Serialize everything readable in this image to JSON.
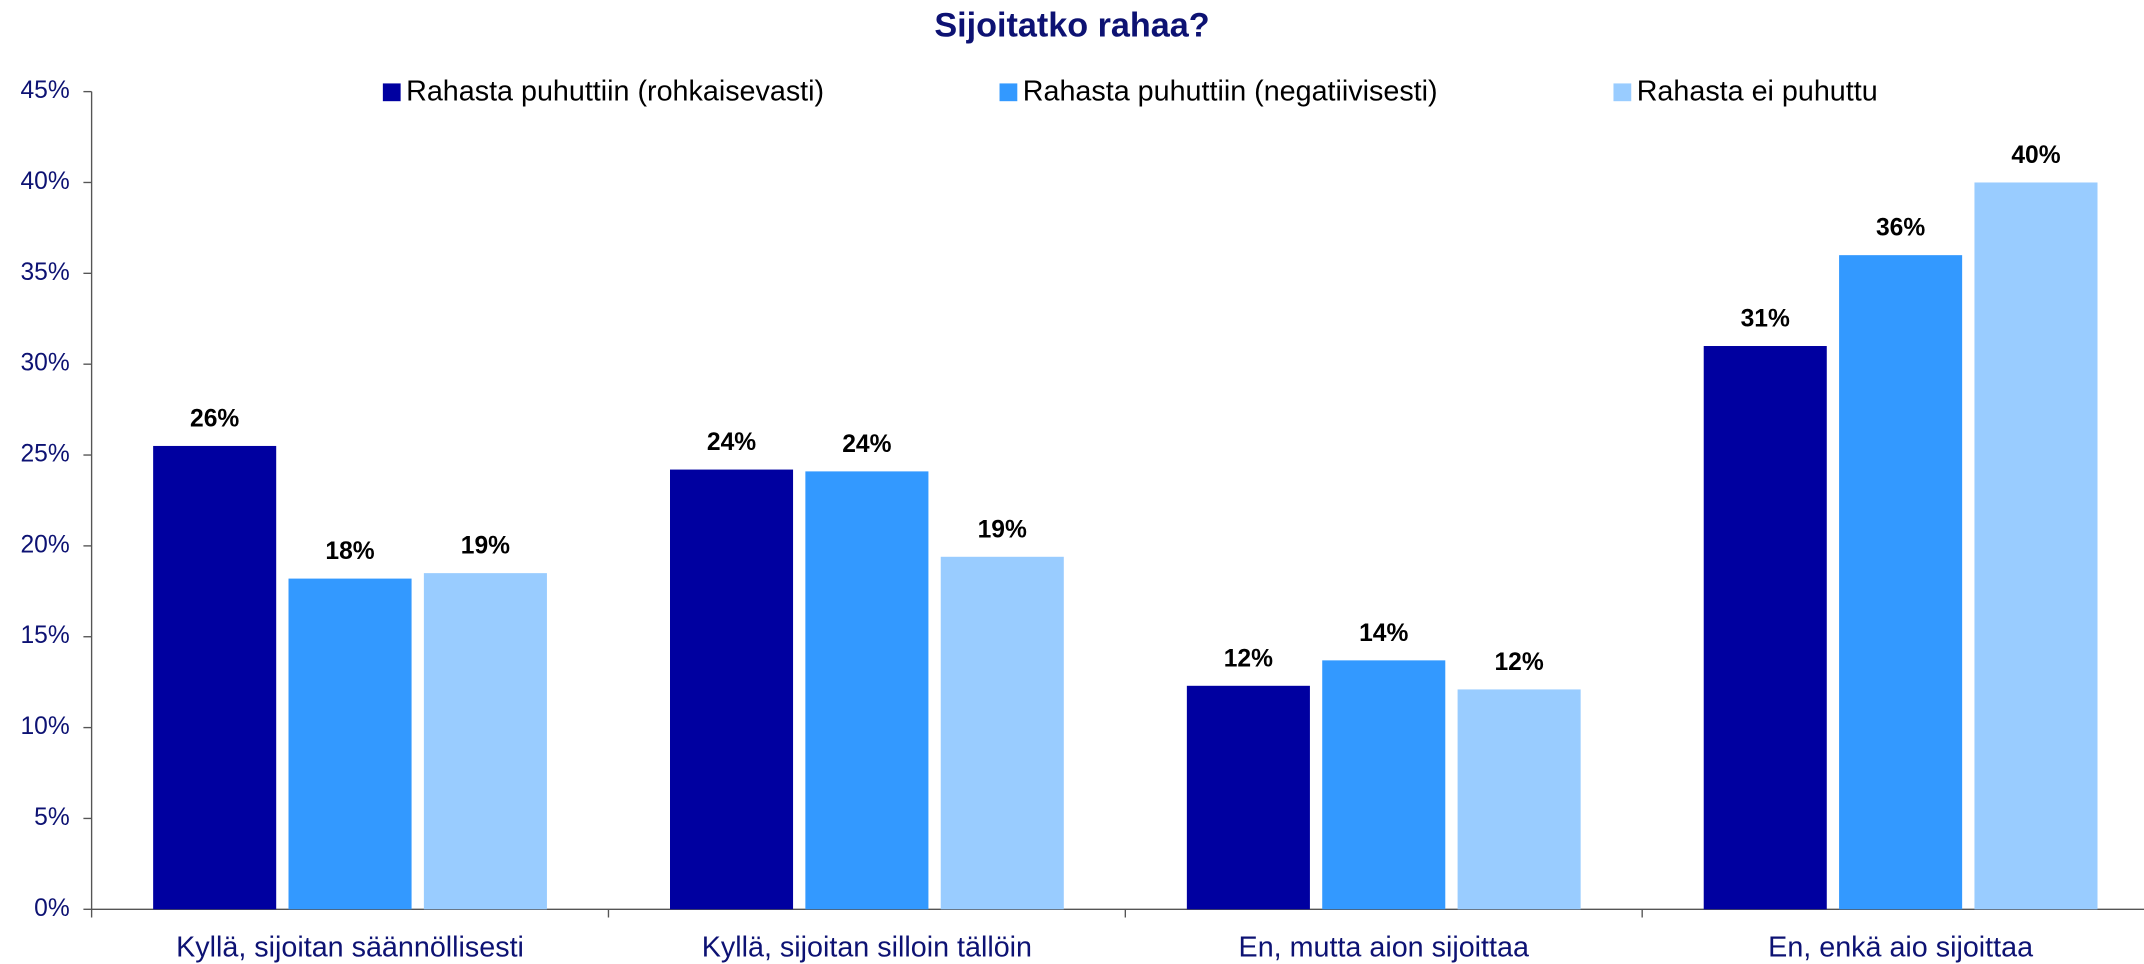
{
  "chart_data": {
    "type": "bar",
    "title": "Sijoitatko rahaa?",
    "categories": [
      "Kyllä, sijoitan säännöllisesti",
      "Kyllä, sijoitan silloin tällöin",
      "En, mutta aion sijoittaa",
      "En, enkä aio sijoittaa"
    ],
    "series": [
      {
        "name": "Rahasta puhuttiin (rohkaisevasti)",
        "color": "#0000a0",
        "values": [
          25.5,
          24.2,
          12.3,
          31.0
        ],
        "value_labels": [
          "26%",
          "24%",
          "12%",
          "31%"
        ]
      },
      {
        "name": "Rahasta puhuttiin (negatiivisesti)",
        "color": "#3399ff",
        "values": [
          18.2,
          24.1,
          13.7,
          36.0
        ],
        "value_labels": [
          "18%",
          "24%",
          "14%",
          "36%"
        ]
      },
      {
        "name": "Rahasta ei puhuttu",
        "color": "#99ccff",
        "values": [
          18.5,
          19.4,
          12.1,
          40.0
        ],
        "value_labels": [
          "19%",
          "19%",
          "12%",
          "40%"
        ]
      }
    ],
    "ylim": [
      0,
      45
    ],
    "yticks": [
      {
        "value": 0,
        "label": "0%"
      },
      {
        "value": 5,
        "label": "5%"
      },
      {
        "value": 10,
        "label": "10%"
      },
      {
        "value": 15,
        "label": "15%"
      },
      {
        "value": 20,
        "label": "20%"
      },
      {
        "value": 25,
        "label": "25%"
      },
      {
        "value": 30,
        "label": "30%"
      },
      {
        "value": 35,
        "label": "35%"
      },
      {
        "value": 40,
        "label": "40%"
      },
      {
        "value": 45,
        "label": "45%"
      }
    ],
    "legend": "top"
  }
}
